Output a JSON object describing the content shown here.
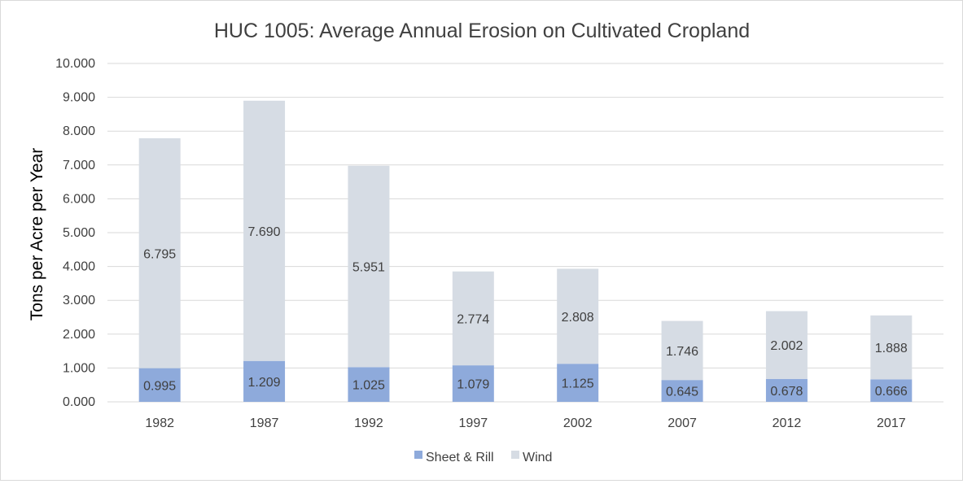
{
  "chart_data": {
    "type": "bar",
    "stacked": true,
    "title": "HUC 1005: Average Annual Erosion on Cultivated Cropland",
    "xlabel": "",
    "ylabel": "Tons per Acre per Year",
    "categories": [
      "1982",
      "1987",
      "1992",
      "1997",
      "2002",
      "2007",
      "2012",
      "2017"
    ],
    "series": [
      {
        "name": "Sheet & Rill",
        "color": "#8eaadb",
        "values": [
          0.995,
          1.209,
          1.025,
          1.079,
          1.125,
          0.645,
          0.678,
          0.666
        ],
        "labels": [
          "0.995",
          "1.209",
          "1.025",
          "1.079",
          "1.125",
          "0.645",
          "0.678",
          "0.666"
        ]
      },
      {
        "name": "Wind",
        "color": "#d6dce4",
        "values": [
          6.795,
          7.69,
          5.951,
          2.774,
          2.808,
          1.746,
          2.002,
          1.888
        ],
        "labels": [
          "6.795",
          "7.690",
          "5.951",
          "2.774",
          "2.808",
          "1.746",
          "2.002",
          "1.888"
        ]
      }
    ],
    "ylim": [
      0,
      10
    ],
    "yticks": [
      0,
      1,
      2,
      3,
      4,
      5,
      6,
      7,
      8,
      9,
      10
    ],
    "ytick_labels": [
      "0.000",
      "1.000",
      "2.000",
      "3.000",
      "4.000",
      "5.000",
      "6.000",
      "7.000",
      "8.000",
      "9.000",
      "10.000"
    ],
    "grid": true,
    "legend_position": "bottom",
    "text_color": "#404040",
    "grid_color": "#d9d9d9"
  }
}
